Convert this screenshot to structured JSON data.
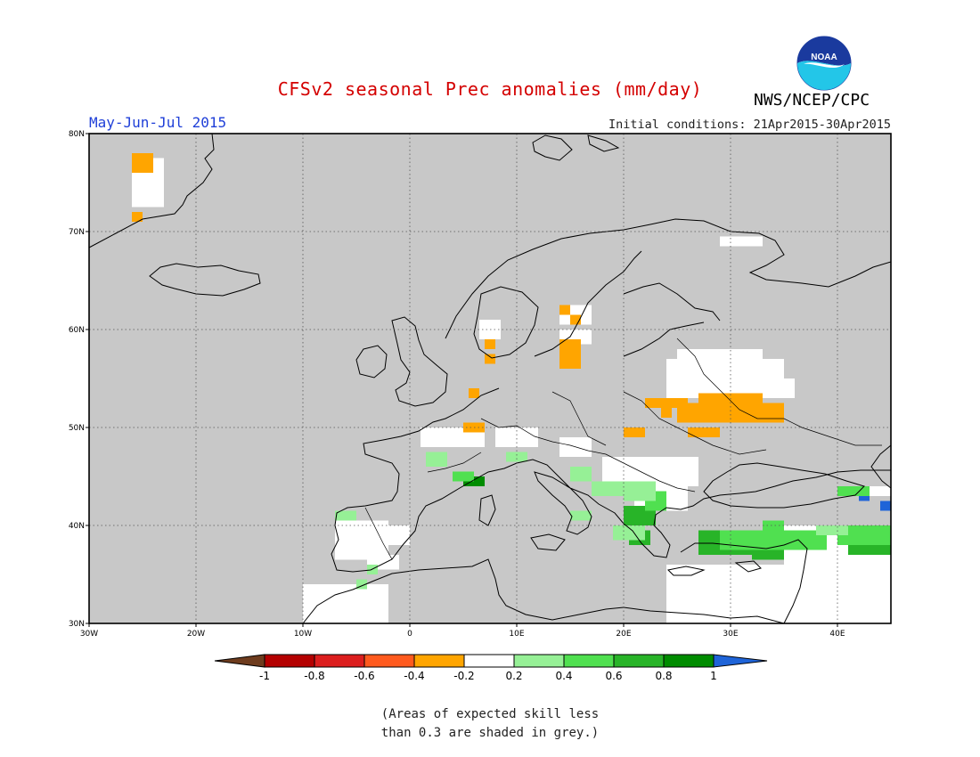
{
  "header": {
    "title": "CFSv2 seasonal Prec anomalies (mm/day)",
    "period": "May-Jun-Jul 2015",
    "initial_conditions": "Initial conditions: 21Apr2015-30Apr2015",
    "organization": "NWS/NCEP/CPC",
    "logo_text": "NOAA"
  },
  "map": {
    "extent_lon": [
      -30,
      45
    ],
    "extent_lat": [
      30,
      80
    ],
    "lon_ticks": [
      {
        "lon": -30,
        "label": "30W"
      },
      {
        "lon": -20,
        "label": "20W"
      },
      {
        "lon": -10,
        "label": "10W"
      },
      {
        "lon": 0,
        "label": "0"
      },
      {
        "lon": 10,
        "label": "10E"
      },
      {
        "lon": 20,
        "label": "20E"
      },
      {
        "lon": 30,
        "label": "30E"
      },
      {
        "lon": 40,
        "label": "40E"
      }
    ],
    "lat_ticks": [
      {
        "lat": 80,
        "label": "80N"
      },
      {
        "lat": 70,
        "label": "70N"
      },
      {
        "lat": 60,
        "label": "60N"
      },
      {
        "lat": 50,
        "label": "50N"
      },
      {
        "lat": 40,
        "label": "40N"
      },
      {
        "lat": 30,
        "label": "30N"
      }
    ],
    "background_color": "#c8c8c8",
    "gridlines": "dotted",
    "anomaly_cells": [
      {
        "lon": -26,
        "lat": 76,
        "w": 2,
        "h": 2,
        "color": "#ffa500"
      },
      {
        "lon": -26,
        "lat": 71,
        "w": 1,
        "h": 1,
        "color": "#ffa500"
      },
      {
        "lon": 7,
        "lat": 58,
        "w": 1,
        "h": 1,
        "color": "#ffa500"
      },
      {
        "lon": 7,
        "lat": 56.5,
        "w": 1,
        "h": 1,
        "color": "#ffa500"
      },
      {
        "lon": 5.5,
        "lat": 53,
        "w": 1,
        "h": 1,
        "color": "#ffa500"
      },
      {
        "lon": 14,
        "lat": 61.5,
        "w": 1,
        "h": 1,
        "color": "#ffa500"
      },
      {
        "lon": 15,
        "lat": 60.5,
        "w": 1,
        "h": 1,
        "color": "#ffa500"
      },
      {
        "lon": 14,
        "lat": 56,
        "w": 2,
        "h": 3,
        "color": "#ffa500"
      },
      {
        "lon": 5,
        "lat": 49.5,
        "w": 2,
        "h": 1,
        "color": "#ffa500"
      },
      {
        "lon": 20,
        "lat": 49,
        "w": 2,
        "h": 1,
        "color": "#ffa500"
      },
      {
        "lon": 22,
        "lat": 52,
        "w": 4,
        "h": 1,
        "color": "#ffa500"
      },
      {
        "lon": 26,
        "lat": 49,
        "w": 3,
        "h": 1,
        "color": "#ffa500"
      },
      {
        "lon": 25,
        "lat": 50.5,
        "w": 10,
        "h": 2,
        "color": "#ffa500"
      },
      {
        "lon": 27,
        "lat": 52,
        "w": 6,
        "h": 1.5,
        "color": "#ffa500"
      },
      {
        "lon": 23.5,
        "lat": 51,
        "w": 1,
        "h": 1,
        "color": "#ffa500"
      },
      {
        "lon": 5,
        "lat": 44,
        "w": 2,
        "h": 1,
        "color": "#008c00"
      },
      {
        "lon": 20.5,
        "lat": 39.5,
        "w": 1,
        "h": 1,
        "color": "#1f64d8"
      },
      {
        "lon": 28,
        "lat": 37.5,
        "w": 2,
        "h": 1,
        "color": "#1f64d8"
      },
      {
        "lon": 42,
        "lat": 42.5,
        "w": 1,
        "h": 1,
        "color": "#1f64d8"
      },
      {
        "lon": 44,
        "lat": 41.5,
        "w": 1,
        "h": 1,
        "color": "#1f64d8"
      },
      {
        "lon": 27,
        "lat": 37,
        "w": 6,
        "h": 2.5,
        "color": "#28b428"
      },
      {
        "lon": 32,
        "lat": 36.5,
        "w": 3,
        "h": 1.5,
        "color": "#28b428"
      },
      {
        "lon": 41,
        "lat": 37,
        "w": 4,
        "h": 2.5,
        "color": "#28b428"
      },
      {
        "lon": 20,
        "lat": 40,
        "w": 3,
        "h": 2,
        "color": "#28b428"
      },
      {
        "lon": 20.5,
        "lat": 38,
        "w": 2,
        "h": 1.5,
        "color": "#28b428"
      },
      {
        "lon": 29,
        "lat": 37.5,
        "w": 10,
        "h": 2,
        "color": "#50e050"
      },
      {
        "lon": 40,
        "lat": 38,
        "w": 5,
        "h": 2,
        "color": "#50e050"
      },
      {
        "lon": 33,
        "lat": 39.5,
        "w": 2,
        "h": 1,
        "color": "#50e050"
      },
      {
        "lon": 22,
        "lat": 41.5,
        "w": 2,
        "h": 2,
        "color": "#50e050"
      },
      {
        "lon": 40,
        "lat": 43,
        "w": 3,
        "h": 1,
        "color": "#50e050"
      },
      {
        "lon": 4,
        "lat": 44.5,
        "w": 2,
        "h": 1,
        "color": "#50e050"
      },
      {
        "lon": 1.5,
        "lat": 46,
        "w": 2,
        "h": 1.5,
        "color": "#96f096"
      },
      {
        "lon": 9,
        "lat": 46.5,
        "w": 2,
        "h": 1,
        "color": "#96f096"
      },
      {
        "lon": 15,
        "lat": 44.5,
        "w": 2,
        "h": 1.5,
        "color": "#96f096"
      },
      {
        "lon": 17,
        "lat": 43,
        "w": 3,
        "h": 1.5,
        "color": "#96f096"
      },
      {
        "lon": 20,
        "lat": 42.5,
        "w": 3,
        "h": 2,
        "color": "#96f096"
      },
      {
        "lon": 19,
        "lat": 38.5,
        "w": 3,
        "h": 1.5,
        "color": "#96f096"
      },
      {
        "lon": 15,
        "lat": 40.5,
        "w": 2,
        "h": 1,
        "color": "#96f096"
      },
      {
        "lon": -7,
        "lat": 40.5,
        "w": 2,
        "h": 1,
        "color": "#96f096"
      },
      {
        "lon": -5,
        "lat": 33.5,
        "w": 1,
        "h": 1,
        "color": "#96f096"
      },
      {
        "lon": -4,
        "lat": 35,
        "w": 1,
        "h": 1,
        "color": "#96f096"
      },
      {
        "lon": 38,
        "lat": 39,
        "w": 3,
        "h": 1,
        "color": "#96f096"
      }
    ],
    "white_cells": [
      {
        "lon": -26,
        "lat": 72.5,
        "w": 3,
        "h": 5
      },
      {
        "lon": -7,
        "lat": 36.5,
        "w": 5,
        "h": 4
      },
      {
        "lon": -4,
        "lat": 38,
        "w": 4,
        "h": 2
      },
      {
        "lon": -10,
        "lat": 30,
        "w": 8,
        "h": 4
      },
      {
        "lon": -4,
        "lat": 35.5,
        "w": 3,
        "h": 1.5
      },
      {
        "lon": 1,
        "lat": 48,
        "w": 6,
        "h": 2
      },
      {
        "lon": 8,
        "lat": 48,
        "w": 4,
        "h": 2
      },
      {
        "lon": 14,
        "lat": 47,
        "w": 3,
        "h": 2
      },
      {
        "lon": 18,
        "lat": 44,
        "w": 9,
        "h": 3
      },
      {
        "lon": 21,
        "lat": 41.5,
        "w": 5,
        "h": 2.5
      },
      {
        "lon": 24,
        "lat": 53,
        "w": 11,
        "h": 4
      },
      {
        "lon": 25,
        "lat": 56,
        "w": 8,
        "h": 2
      },
      {
        "lon": 31,
        "lat": 53,
        "w": 5,
        "h": 2
      },
      {
        "lon": 29,
        "lat": 68.5,
        "w": 4,
        "h": 1
      },
      {
        "lon": 14,
        "lat": 60.5,
        "w": 3,
        "h": 2
      },
      {
        "lon": 14,
        "lat": 58.5,
        "w": 3,
        "h": 1.5
      },
      {
        "lon": 6.5,
        "lat": 59,
        "w": 2,
        "h": 2
      },
      {
        "lon": 24,
        "lat": 30,
        "w": 21,
        "h": 6
      },
      {
        "lon": 35,
        "lat": 32,
        "w": 10,
        "h": 6
      },
      {
        "lon": 34,
        "lat": 38,
        "w": 11,
        "h": 2
      },
      {
        "lon": 42,
        "lat": 43,
        "w": 3,
        "h": 1
      }
    ]
  },
  "colorbar": {
    "ticks": [
      "-1",
      "-0.8",
      "-0.6",
      "-0.4",
      "-0.2",
      "0.2",
      "0.4",
      "0.6",
      "0.8",
      "1"
    ],
    "colors": [
      "#6e3c1e",
      "#b40000",
      "#dc1e1e",
      "#ff5a1e",
      "#ffa500",
      "#ffffff",
      "#96f096",
      "#50e050",
      "#28b428",
      "#008c00",
      "#1f64d8"
    ]
  },
  "footnote": {
    "line1": "(Areas of expected skill less",
    "line2": "than 0.3 are shaded in grey.)"
  }
}
